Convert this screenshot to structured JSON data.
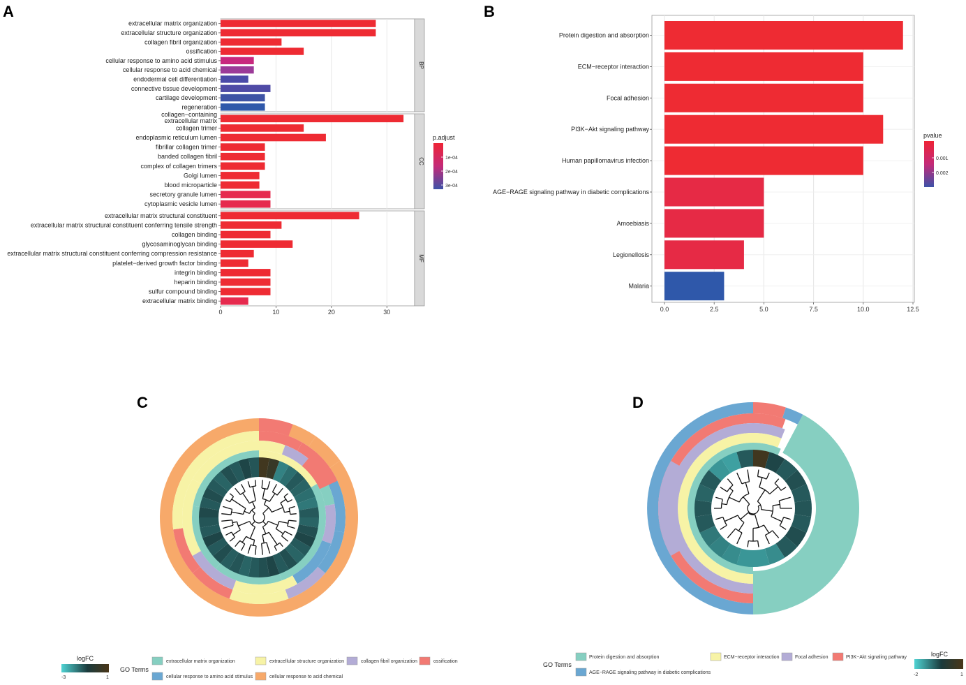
{
  "panels": {
    "a": "A",
    "b": "B",
    "c": "C",
    "d": "D"
  },
  "chart_data": [
    {
      "type": "bar",
      "orientation": "horizontal",
      "panel": "A",
      "x_ticks": [
        "0",
        "10",
        "20",
        "30"
      ],
      "xlim": [
        0,
        35
      ],
      "legend": {
        "title": "p.adjust",
        "ticks": [
          "1e-04",
          "2e-04",
          "3e-04"
        ],
        "colors": [
          "#e8243a",
          "#c02b78",
          "#3f51a8"
        ]
      },
      "facets": [
        {
          "name": "BP",
          "categories": [
            "extracellular matrix organization",
            "extracellular structure organization",
            "collagen fibril organization",
            "ossification",
            "cellular response to amino acid stimulus",
            "cellular response to acid chemical",
            "endodermal cell differentiation",
            "connective tissue development",
            "cartilage development",
            "regeneration"
          ],
          "values": [
            28,
            28,
            11,
            15,
            6,
            6,
            5,
            9,
            8,
            8
          ],
          "colors": [
            "#ee2b33",
            "#ee2b33",
            "#ee2b33",
            "#ee2b33",
            "#c8287e",
            "#9b3a98",
            "#4a4aa8",
            "#4f4ba6",
            "#3e53a5",
            "#2f58aa"
          ]
        },
        {
          "name": "CC",
          "categories": [
            "collagen−containing extracellular matrix",
            "collagen trimer",
            "endoplasmic reticulum lumen",
            "fibrillar collagen trimer",
            "banded collagen fibril",
            "complex of collagen trimers",
            "Golgi lumen",
            "blood microparticle",
            "secretory granule lumen",
            "cytoplasmic vesicle lumen"
          ],
          "values": [
            33,
            15,
            19,
            8,
            8,
            8,
            7,
            7,
            9,
            9
          ],
          "colors": [
            "#ee2b33",
            "#ee2b33",
            "#ee2b33",
            "#ee2b33",
            "#ee2b33",
            "#ee2b33",
            "#ee2b33",
            "#ee2b33",
            "#e62a4e",
            "#e62a4e"
          ]
        },
        {
          "name": "MF",
          "categories": [
            "extracellular matrix structural constituent",
            "extracellular matrix structural constituent conferring tensile strength",
            "collagen binding",
            "glycosaminoglycan binding",
            "extracellular matrix structural constituent conferring compression resistance",
            "platelet−derived growth factor binding",
            "integrin binding",
            "heparin binding",
            "sulfur compound binding",
            "extracellular matrix binding"
          ],
          "values": [
            25,
            11,
            9,
            13,
            6,
            5,
            9,
            9,
            9,
            5
          ],
          "colors": [
            "#ee2b33",
            "#ee2b33",
            "#ee2b33",
            "#ee2b33",
            "#ee2b33",
            "#ee2b33",
            "#ee2b33",
            "#ee2b33",
            "#ee2b33",
            "#e62a4e"
          ]
        }
      ]
    },
    {
      "type": "bar",
      "orientation": "horizontal",
      "panel": "B",
      "categories": [
        "Protein digestion and absorption",
        "ECM−receptor interaction",
        "Focal adhesion",
        "PI3K−Akt signaling pathway",
        "Human papillomavirus infection",
        "AGE−RAGE signaling pathway in diabetic complications",
        "Amoebiasis",
        "Legionellosis",
        "Malaria"
      ],
      "values": [
        12,
        10,
        10,
        11,
        10,
        5,
        5,
        4,
        3
      ],
      "colors": [
        "#ee2b33",
        "#ee2b33",
        "#ee2b33",
        "#ee2b33",
        "#ee2b33",
        "#e62a45",
        "#e62a45",
        "#e62a45",
        "#2f58aa"
      ],
      "x_ticks": [
        "0.0",
        "2.5",
        "5.0",
        "7.5",
        "10.0",
        "12.5"
      ],
      "xlim": [
        0,
        12.5
      ],
      "legend": {
        "title": "pvalue",
        "ticks": [
          "0.001",
          "0.002"
        ],
        "colors": [
          "#e8243a",
          "#c02b78",
          "#3f51a8"
        ]
      }
    },
    {
      "type": "circular-heatmap",
      "panel": "C",
      "legend": {
        "title": "logFC",
        "min": "-3",
        "max": "1"
      },
      "go_title": "GO Terms",
      "terms": [
        {
          "label": "extracellular matrix organization",
          "color": "#86cfc1"
        },
        {
          "label": "extracellular structure organization",
          "color": "#f7f3a6"
        },
        {
          "label": "collagen fibril organization",
          "color": "#b3acd6"
        },
        {
          "label": "ossification",
          "color": "#f27a73"
        },
        {
          "label": "cellular response to amino acid stimulus",
          "color": "#6aa7d2"
        },
        {
          "label": "cellular response to acid chemical",
          "color": "#f7a96a"
        }
      ]
    },
    {
      "type": "circular-heatmap",
      "panel": "D",
      "legend": {
        "title": "logFC",
        "min": "-2",
        "max": "1"
      },
      "go_title": "GO Terms",
      "terms": [
        {
          "label": "Protein digestion and absorption",
          "color": "#86cfc1"
        },
        {
          "label": "ECM−receptor interaction",
          "color": "#f7f3a6"
        },
        {
          "label": "Focal adhesion",
          "color": "#b3acd6"
        },
        {
          "label": "PI3K−Akt signaling pathway",
          "color": "#f27a73"
        },
        {
          "label": "AGE−RAGE signaling pathway in diabetic complications",
          "color": "#6aa7d2"
        }
      ]
    }
  ]
}
